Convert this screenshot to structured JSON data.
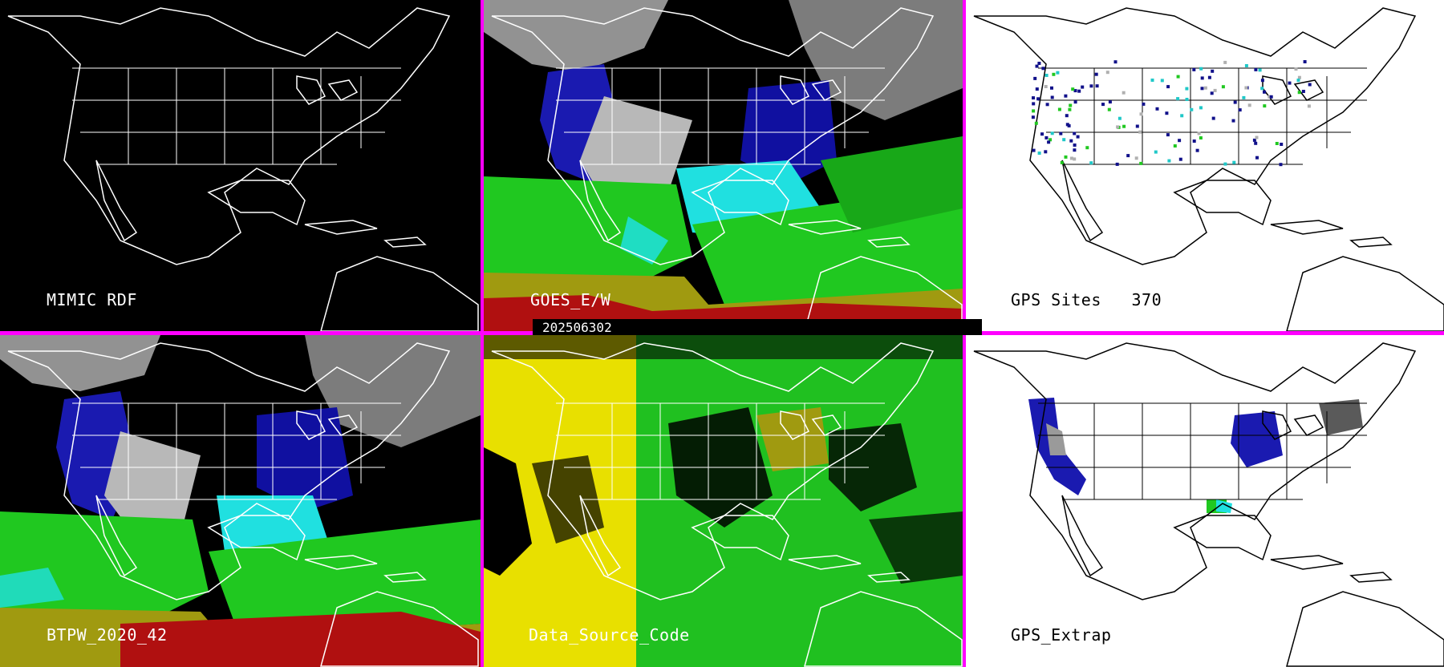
{
  "panels": [
    {
      "id": "p1",
      "label": "MIMIC RDF",
      "theme": "dark"
    },
    {
      "id": "p2",
      "label": "GOES_E/W",
      "theme": "dark"
    },
    {
      "id": "p3",
      "label": "GPS Sites   370",
      "theme": "light"
    },
    {
      "id": "p4",
      "label": "BTPW_2020_42",
      "theme": "dark"
    },
    {
      "id": "p5",
      "label": "Data_Source_Code",
      "theme": "dark"
    },
    {
      "id": "p6",
      "label": "GPS_Extrap",
      "theme": "light"
    }
  ],
  "timestamp": "202506302",
  "colors": {
    "separator": "#ff00ff",
    "dark_background": "#000000",
    "light_background": "#ffffff",
    "land_outline_dark": "#ffffff",
    "land_outline_light": "#000000",
    "dry_blue": "#1a1ab0",
    "cyan": "#20e0e0",
    "green": "#20c820",
    "olive": "#a09a10",
    "red": "#b01010",
    "gray": "#a8a8a8",
    "yellow": "#e8e000"
  }
}
